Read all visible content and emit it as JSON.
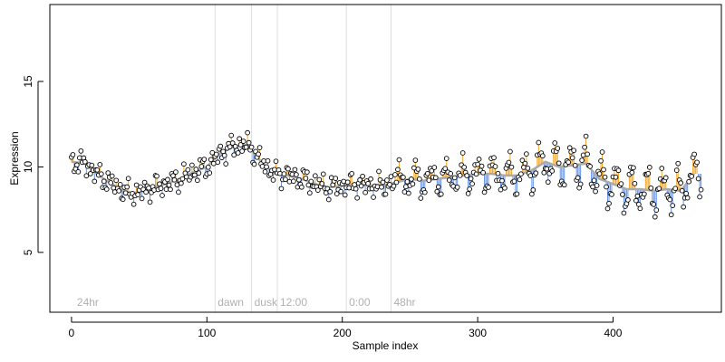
{
  "chart_data": {
    "type": "scatter",
    "title": "",
    "xlabel": "Sample index",
    "ylabel": "Expression",
    "xlim": [
      -16,
      480
    ],
    "ylim": [
      1.5,
      19.5
    ],
    "xticks": [
      0,
      100,
      200,
      300,
      400
    ],
    "yticks": [
      5,
      10,
      15
    ],
    "grid": false,
    "legend": "none",
    "colors": {
      "point_stroke": "#000000",
      "point_fill": "#ffffff",
      "trend": "#aaaaaa",
      "above": "#f5a623",
      "below": "#6495ed",
      "vline": "#dddddd",
      "annotation": "#b0b0b0"
    },
    "annotations": [
      {
        "x": 2,
        "label": "24hr",
        "line": false
      },
      {
        "x": 106,
        "label": "dawn",
        "line": true
      },
      {
        "x": 133,
        "label": "dusk",
        "line": true
      },
      {
        "x": 152,
        "label": "12:00",
        "line": true
      },
      {
        "x": 203,
        "label": "0:00",
        "line": true
      },
      {
        "x": 236,
        "label": "48hr",
        "line": true
      }
    ],
    "trend": [
      [
        0,
        10.3
      ],
      [
        10,
        10.2
      ],
      [
        20,
        9.5
      ],
      [
        30,
        9.0
      ],
      [
        40,
        8.5
      ],
      [
        50,
        8.5
      ],
      [
        60,
        8.8
      ],
      [
        70,
        9.0
      ],
      [
        80,
        9.3
      ],
      [
        90,
        9.7
      ],
      [
        100,
        10.0
      ],
      [
        110,
        10.8
      ],
      [
        120,
        11.2
      ],
      [
        130,
        11.3
      ],
      [
        140,
        10.3
      ],
      [
        150,
        9.6
      ],
      [
        160,
        9.5
      ],
      [
        170,
        9.3
      ],
      [
        180,
        9.0
      ],
      [
        190,
        8.8
      ],
      [
        200,
        8.9
      ],
      [
        210,
        9.0
      ],
      [
        220,
        8.9
      ],
      [
        230,
        8.9
      ],
      [
        240,
        9.1
      ],
      [
        250,
        9.3
      ],
      [
        260,
        9.2
      ],
      [
        270,
        9.3
      ],
      [
        280,
        9.4
      ],
      [
        290,
        9.5
      ],
      [
        300,
        9.6
      ],
      [
        310,
        9.6
      ],
      [
        320,
        9.5
      ],
      [
        330,
        9.5
      ],
      [
        340,
        9.8
      ],
      [
        350,
        10.3
      ],
      [
        360,
        10.0
      ],
      [
        370,
        10.1
      ],
      [
        380,
        10.2
      ],
      [
        390,
        9.3
      ],
      [
        400,
        9.0
      ],
      [
        410,
        8.7
      ],
      [
        420,
        8.7
      ],
      [
        430,
        8.6
      ],
      [
        440,
        8.7
      ],
      [
        450,
        8.6
      ],
      [
        460,
        9.6
      ]
    ]
  }
}
